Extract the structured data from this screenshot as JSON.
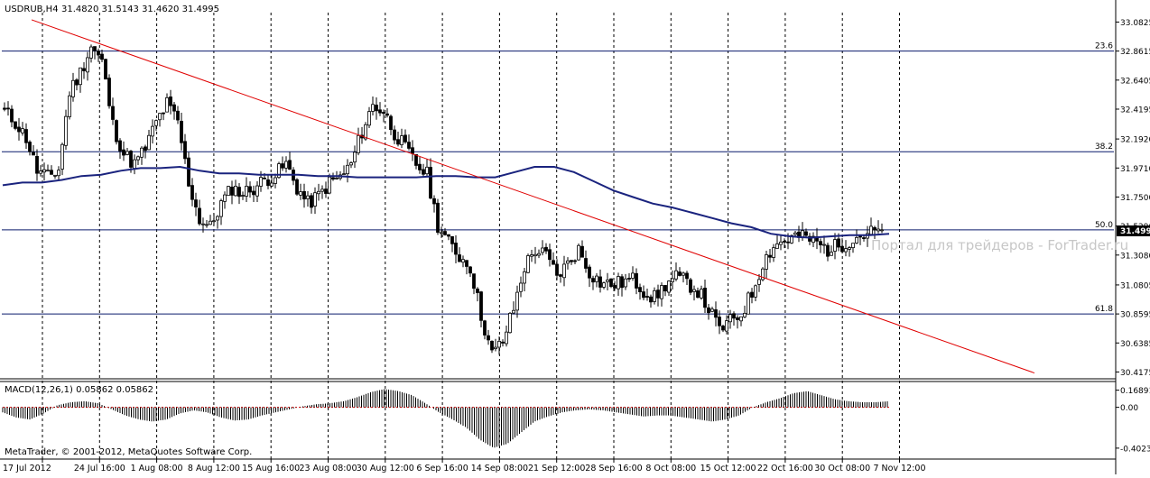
{
  "header": {
    "symbol": "USDRUB,H4",
    "ohlc": "31.4820 31.5143 31.4620 31.4995"
  },
  "watermark": "Портал для трейдеров - ForTrader.ru",
  "copyright": "MetaTrader, © 2001-2012, MetaQuotes Software Corp.",
  "current_price_label": "31.4995",
  "colors": {
    "background": "#ffffff",
    "candle": "#000000",
    "grid": "#000000",
    "ma": "#1a237e",
    "fib": "#0a1a6b",
    "trendline": "#e00000",
    "macd_hist": "#000000",
    "macd_signal": "#e00000",
    "watermark": "#c7c7c7"
  },
  "chart_data": [
    {
      "type": "candlestick",
      "title": "",
      "y_ticks": [
        "33.0825",
        "32.8615",
        "32.6405",
        "32.4195",
        "32.1920",
        "31.9710",
        "31.7500",
        "31.5290",
        "31.3080",
        "31.0805",
        "30.8595",
        "30.6385",
        "30.4175"
      ],
      "ylim": [
        30.4,
        33.12
      ],
      "x_ticks": [
        "17 Jul 2012",
        "24 Jul 16:00",
        "1 Aug 08:00",
        "8 Aug 12:00",
        "15 Aug 16:00",
        "23 Aug 08:00",
        "30 Aug 12:00",
        "6 Sep 16:00",
        "14 Sep 08:00",
        "21 Sep 12:00",
        "28 Sep 16:00",
        "8 Oct 08:00",
        "15 Oct 12:00",
        "22 Oct 16:00",
        "30 Oct 08:00",
        "7 Nov 12:00"
      ],
      "close_series": [
        32.4,
        32.32,
        32.2,
        31.95,
        31.9,
        31.96,
        32.55,
        32.7,
        32.9,
        32.78,
        32.3,
        32.08,
        32.0,
        32.12,
        32.32,
        32.46,
        32.32,
        31.86,
        31.58,
        31.52,
        31.7,
        31.82,
        31.78,
        31.82,
        31.88,
        31.92,
        32.0,
        31.82,
        31.7,
        31.76,
        31.86,
        31.9,
        32.0,
        32.25,
        32.45,
        32.4,
        32.24,
        32.12,
        32.0,
        31.92,
        31.54,
        31.4,
        31.3,
        31.22,
        30.85,
        30.55,
        30.65,
        30.9,
        31.22,
        31.35,
        31.3,
        31.15,
        31.24,
        31.35,
        31.18,
        31.1,
        31.08,
        31.1,
        31.12,
        31.04,
        30.98,
        31.08,
        31.14,
        31.1,
        31.04,
        30.9,
        30.74,
        30.8,
        30.86,
        31.02,
        31.25,
        31.38,
        31.42,
        31.45,
        31.44,
        31.4,
        31.35,
        31.38,
        31.42,
        31.46,
        31.48,
        31.5
      ],
      "fib_levels": [
        {
          "label": "23.6",
          "price": 32.8615
        },
        {
          "label": "38.2",
          "price": 32.095
        },
        {
          "label": "50.0",
          "price": 31.5
        },
        {
          "label": "61.8",
          "price": 30.8595
        }
      ],
      "trendline": {
        "start": {
          "date": "17 Jul 2012",
          "price": 33.1
        },
        "end": {
          "date": "9 Nov 2012",
          "price": 30.41
        }
      },
      "moving_average": [
        31.84,
        31.86,
        31.86,
        31.88,
        31.91,
        31.92,
        31.95,
        31.97,
        31.97,
        31.98,
        31.95,
        31.93,
        31.93,
        31.92,
        31.92,
        31.92,
        31.91,
        31.91,
        31.9,
        31.9,
        31.9,
        31.9,
        31.91,
        31.91,
        31.9,
        31.9,
        31.94,
        31.98,
        31.98,
        31.94,
        31.87,
        31.8,
        31.75,
        31.7,
        31.67,
        31.63,
        31.59,
        31.55,
        31.52,
        31.47,
        31.45,
        31.44,
        31.45,
        31.46,
        31.46,
        31.47
      ]
    },
    {
      "type": "macd",
      "title": "MACD(12,26,1) 0.05862 0.05862",
      "y_ticks": [
        "0.16891",
        "0.00",
        "-0.40234"
      ],
      "ylim": [
        -0.43,
        0.21
      ],
      "histogram": [
        -0.05,
        -0.1,
        -0.12,
        -0.06,
        0.02,
        0.05,
        0.06,
        0.04,
        -0.02,
        -0.08,
        -0.12,
        -0.14,
        -0.12,
        -0.06,
        -0.03,
        -0.05,
        -0.1,
        -0.13,
        -0.12,
        -0.08,
        -0.05,
        -0.02,
        0.01,
        0.03,
        0.04,
        0.06,
        0.1,
        0.15,
        0.18,
        0.16,
        0.12,
        0.04,
        -0.05,
        -0.12,
        -0.2,
        -0.32,
        -0.4,
        -0.36,
        -0.25,
        -0.14,
        -0.09,
        -0.05,
        -0.03,
        -0.02,
        -0.03,
        -0.05,
        -0.07,
        -0.09,
        -0.08,
        -0.08,
        -0.1,
        -0.12,
        -0.14,
        -0.12,
        -0.08,
        0.0,
        0.05,
        0.09,
        0.14,
        0.16,
        0.12,
        0.08,
        0.06,
        0.05,
        0.05,
        0.06
      ]
    }
  ]
}
